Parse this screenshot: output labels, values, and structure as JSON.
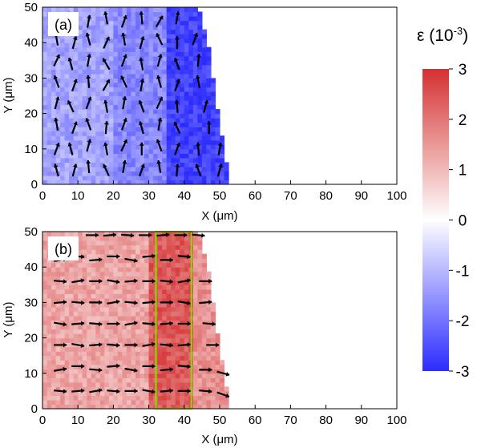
{
  "colorbar": {
    "title": "ε (10",
    "title_exp": "-3",
    "title_close": ")",
    "min": -3,
    "max": 3,
    "ticks": [
      "3",
      "2",
      "1",
      "0",
      "-1",
      "-2",
      "-3"
    ],
    "colors": {
      "low": "#2c2cff",
      "mid": "#ffffff",
      "high": "#d43030"
    }
  },
  "chart_data": [
    {
      "type": "heatmap",
      "panel_label": "(a)",
      "xlabel": "X (μm)",
      "ylabel": "Y (μm)",
      "xlim": [
        0,
        100
      ],
      "ylim": [
        0,
        50
      ],
      "xticks": [
        "0",
        "10",
        "20",
        "30",
        "40",
        "50",
        "60",
        "70",
        "80",
        "90",
        "100"
      ],
      "yticks": [
        "0",
        "10",
        "20",
        "30",
        "40",
        "50"
      ],
      "grain_boundary": [
        [
          0,
          50
        ],
        [
          44,
          50
        ],
        [
          47,
          38
        ],
        [
          49,
          24
        ],
        [
          51,
          12
        ],
        [
          53,
          0
        ],
        [
          0,
          0
        ]
      ],
      "strain_sign": "compressive",
      "strain_levels": [
        {
          "x_range": [
            0,
            20
          ],
          "value": -1.3
        },
        {
          "x_range": [
            20,
            35
          ],
          "value": -1.7
        },
        {
          "x_range": [
            35,
            53
          ],
          "value": -2.7
        }
      ],
      "vectors_note": "short black arrows, mostly oriented ~60-120° from x-axis",
      "arrows": [
        [
          4,
          46,
          70
        ],
        [
          8,
          47,
          110
        ],
        [
          13,
          46,
          80
        ],
        [
          18,
          47,
          100
        ],
        [
          23,
          46,
          70
        ],
        [
          28,
          47,
          95
        ],
        [
          33,
          46,
          60
        ],
        [
          38,
          47,
          80
        ],
        [
          4,
          41,
          100
        ],
        [
          9,
          40,
          75
        ],
        [
          13,
          41,
          105
        ],
        [
          18,
          40,
          65
        ],
        [
          23,
          41,
          100
        ],
        [
          28,
          40,
          75
        ],
        [
          33,
          41,
          115
        ],
        [
          38,
          40,
          90
        ],
        [
          43,
          41,
          70
        ],
        [
          4,
          35,
          65
        ],
        [
          8,
          34,
          105
        ],
        [
          13,
          35,
          80
        ],
        [
          18,
          34,
          120
        ],
        [
          23,
          35,
          70
        ],
        [
          28,
          34,
          100
        ],
        [
          33,
          35,
          75
        ],
        [
          38,
          34,
          110
        ],
        [
          44,
          35,
          85
        ],
        [
          4,
          29,
          110
        ],
        [
          9,
          28,
          70
        ],
        [
          13,
          29,
          95
        ],
        [
          18,
          28,
          60
        ],
        [
          23,
          29,
          115
        ],
        [
          28,
          28,
          80
        ],
        [
          33,
          29,
          105
        ],
        [
          38,
          28,
          70
        ],
        [
          44,
          29,
          100
        ],
        [
          4,
          23,
          75
        ],
        [
          8,
          22,
          115
        ],
        [
          13,
          23,
          70
        ],
        [
          18,
          22,
          100
        ],
        [
          23,
          23,
          80
        ],
        [
          28,
          22,
          110
        ],
        [
          33,
          23,
          65
        ],
        [
          38,
          22,
          95
        ],
        [
          46,
          22,
          75
        ],
        [
          4,
          17,
          100
        ],
        [
          9,
          16,
          70
        ],
        [
          13,
          17,
          110
        ],
        [
          18,
          16,
          85
        ],
        [
          23,
          17,
          70
        ],
        [
          28,
          16,
          105
        ],
        [
          33,
          17,
          80
        ],
        [
          38,
          16,
          115
        ],
        [
          47,
          16,
          90
        ],
        [
          4,
          10,
          70
        ],
        [
          8,
          10,
          105
        ],
        [
          13,
          11,
          75
        ],
        [
          18,
          10,
          100
        ],
        [
          23,
          11,
          65
        ],
        [
          28,
          10,
          90
        ],
        [
          33,
          11,
          110
        ],
        [
          38,
          10,
          70
        ],
        [
          44,
          10,
          95
        ],
        [
          50,
          10,
          80
        ],
        [
          4,
          4,
          105
        ],
        [
          9,
          4,
          75
        ],
        [
          13,
          5,
          95
        ],
        [
          18,
          4,
          115
        ],
        [
          23,
          5,
          80
        ],
        [
          28,
          4,
          70
        ],
        [
          33,
          5,
          100
        ],
        [
          38,
          4,
          85
        ],
        [
          44,
          4,
          110
        ],
        [
          50,
          4,
          75
        ]
      ]
    },
    {
      "type": "heatmap",
      "panel_label": "(b)",
      "xlabel": "X (μm)",
      "ylabel": "Y (μm)",
      "xlim": [
        0,
        100
      ],
      "ylim": [
        0,
        50
      ],
      "xticks": [
        "0",
        "10",
        "20",
        "30",
        "40",
        "50",
        "60",
        "70",
        "80",
        "90",
        "100"
      ],
      "yticks": [
        "0",
        "10",
        "20",
        "30",
        "40",
        "50"
      ],
      "grain_boundary": [
        [
          0,
          50
        ],
        [
          44,
          50
        ],
        [
          47,
          38
        ],
        [
          49,
          24
        ],
        [
          51,
          12
        ],
        [
          53,
          0
        ],
        [
          0,
          0
        ]
      ],
      "strain_sign": "tensile",
      "strain_levels": [
        {
          "x_range": [
            0,
            30
          ],
          "value": 1.3
        },
        {
          "x_range": [
            30,
            42
          ],
          "value": 2.4
        },
        {
          "x_range": [
            42,
            53
          ],
          "value": 1.6
        }
      ],
      "highlight_box": {
        "x": [
          32,
          42
        ],
        "y": [
          0,
          50
        ],
        "color": "#80e000"
      },
      "vectors_note": "short black arrows, mostly near-horizontal (~-15° to 15°)",
      "arrows": [
        [
          14,
          49,
          0
        ],
        [
          19,
          49,
          5
        ],
        [
          24,
          49,
          -5
        ],
        [
          29,
          49,
          0
        ],
        [
          34,
          49,
          5
        ],
        [
          39,
          49,
          0
        ],
        [
          44,
          49,
          -5
        ],
        [
          5,
          42,
          10
        ],
        [
          10,
          43,
          -5
        ],
        [
          15,
          42,
          5
        ],
        [
          20,
          43,
          0
        ],
        [
          25,
          42,
          -10
        ],
        [
          30,
          43,
          5
        ],
        [
          35,
          42,
          0
        ],
        [
          40,
          43,
          -5
        ],
        [
          5,
          36,
          -5
        ],
        [
          10,
          36,
          10
        ],
        [
          15,
          36,
          0
        ],
        [
          20,
          36,
          -10
        ],
        [
          25,
          36,
          5
        ],
        [
          30,
          36,
          0
        ],
        [
          35,
          36,
          -5
        ],
        [
          40,
          36,
          10
        ],
        [
          46,
          36,
          0
        ],
        [
          5,
          30,
          5
        ],
        [
          10,
          30,
          -5
        ],
        [
          15,
          30,
          0
        ],
        [
          20,
          30,
          10
        ],
        [
          25,
          30,
          -5
        ],
        [
          30,
          30,
          5
        ],
        [
          35,
          30,
          0
        ],
        [
          40,
          30,
          -10
        ],
        [
          46,
          30,
          5
        ],
        [
          5,
          24,
          -10
        ],
        [
          10,
          24,
          5
        ],
        [
          15,
          24,
          -5
        ],
        [
          20,
          24,
          0
        ],
        [
          25,
          24,
          10
        ],
        [
          30,
          24,
          -5
        ],
        [
          35,
          24,
          5
        ],
        [
          40,
          24,
          0
        ],
        [
          47,
          24,
          -5
        ],
        [
          5,
          18,
          0
        ],
        [
          10,
          18,
          -10
        ],
        [
          15,
          18,
          5
        ],
        [
          20,
          18,
          -5
        ],
        [
          25,
          18,
          0
        ],
        [
          30,
          18,
          10
        ],
        [
          35,
          18,
          -5
        ],
        [
          40,
          18,
          5
        ],
        [
          48,
          18,
          0
        ],
        [
          5,
          11,
          10
        ],
        [
          10,
          12,
          0
        ],
        [
          15,
          11,
          -5
        ],
        [
          20,
          12,
          5
        ],
        [
          25,
          11,
          -10
        ],
        [
          30,
          12,
          0
        ],
        [
          35,
          11,
          5
        ],
        [
          40,
          12,
          -5
        ],
        [
          46,
          11,
          0
        ],
        [
          51,
          10,
          -15
        ],
        [
          5,
          5,
          -5
        ],
        [
          10,
          5,
          5
        ],
        [
          15,
          5,
          10
        ],
        [
          20,
          5,
          -5
        ],
        [
          25,
          5,
          0
        ],
        [
          30,
          5,
          -10
        ],
        [
          35,
          5,
          5
        ],
        [
          40,
          5,
          0
        ],
        [
          46,
          5,
          -5
        ],
        [
          51,
          4,
          -20
        ]
      ]
    }
  ]
}
